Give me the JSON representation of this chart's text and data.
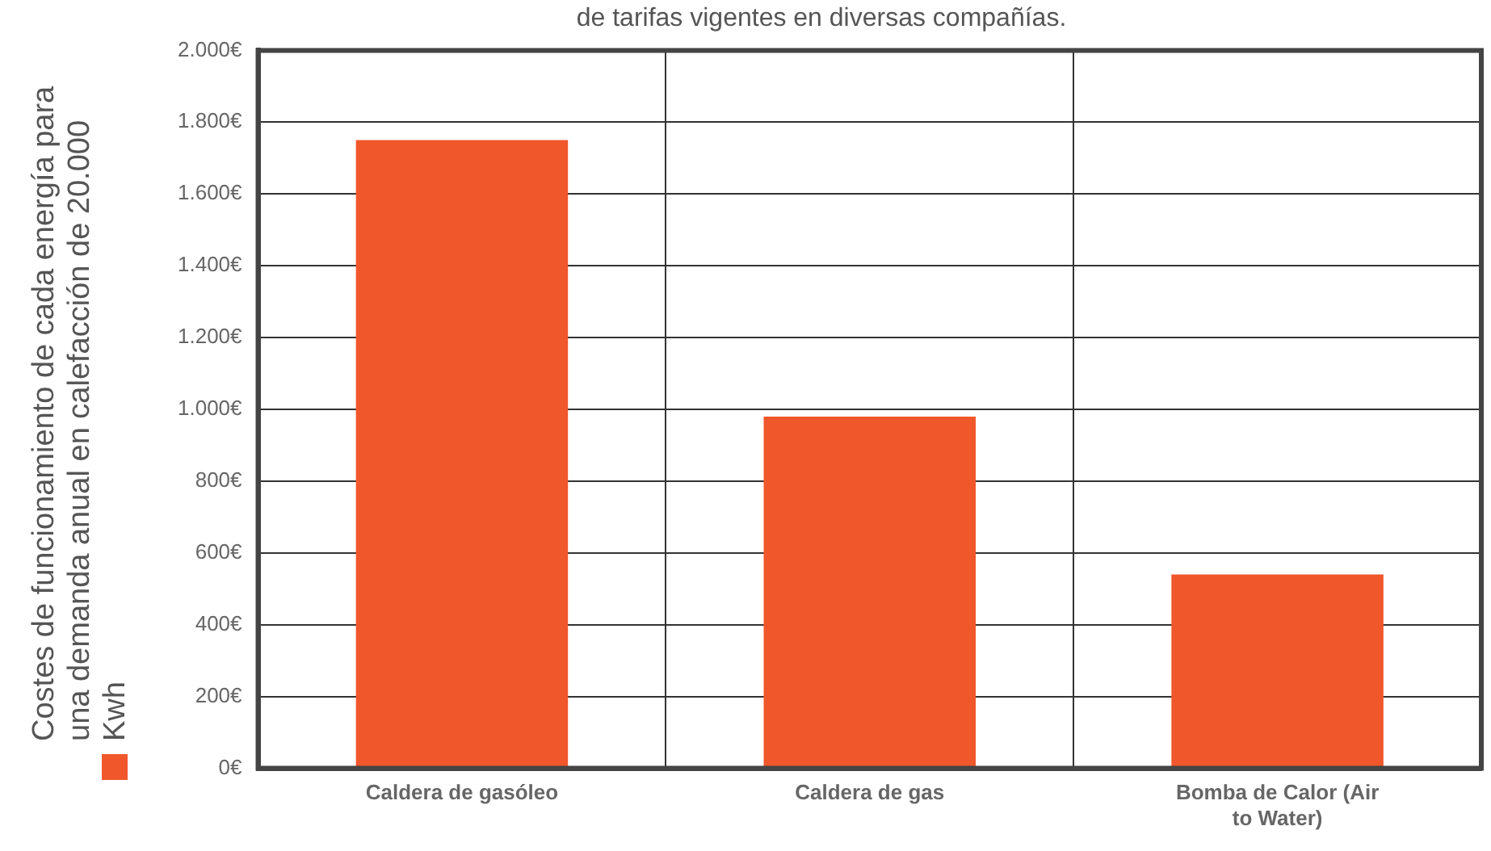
{
  "chart_data": {
    "type": "bar",
    "title": "de tarifas vigentes en diversas compañías.",
    "categories": [
      "Caldera de gasóleo",
      "Caldera de gas",
      "Bomba de Calor (Air to Water)"
    ],
    "series": [
      {
        "name": "Costes de funcionamiento de cada energía para una demanda anual en calefacción de 20.000 Kwh",
        "color": "#f0572a",
        "values": [
          1750,
          980,
          540
        ]
      }
    ],
    "ylim": [
      0,
      2000
    ],
    "yticks": [
      {
        "value": 0,
        "label": "0€"
      },
      {
        "value": 200,
        "label": "200€"
      },
      {
        "value": 400,
        "label": "400€"
      },
      {
        "value": 600,
        "label": "600€"
      },
      {
        "value": 800,
        "label": "800€"
      },
      {
        "value": 1000,
        "label": "1.000€"
      },
      {
        "value": 1200,
        "label": "1.200€"
      },
      {
        "value": 1400,
        "label": "1.400€"
      },
      {
        "value": 1600,
        "label": "1.600€"
      },
      {
        "value": 1800,
        "label": "1.800€"
      },
      {
        "value": 2000,
        "label": "2.000€"
      }
    ],
    "grid": true,
    "legend": "left"
  }
}
